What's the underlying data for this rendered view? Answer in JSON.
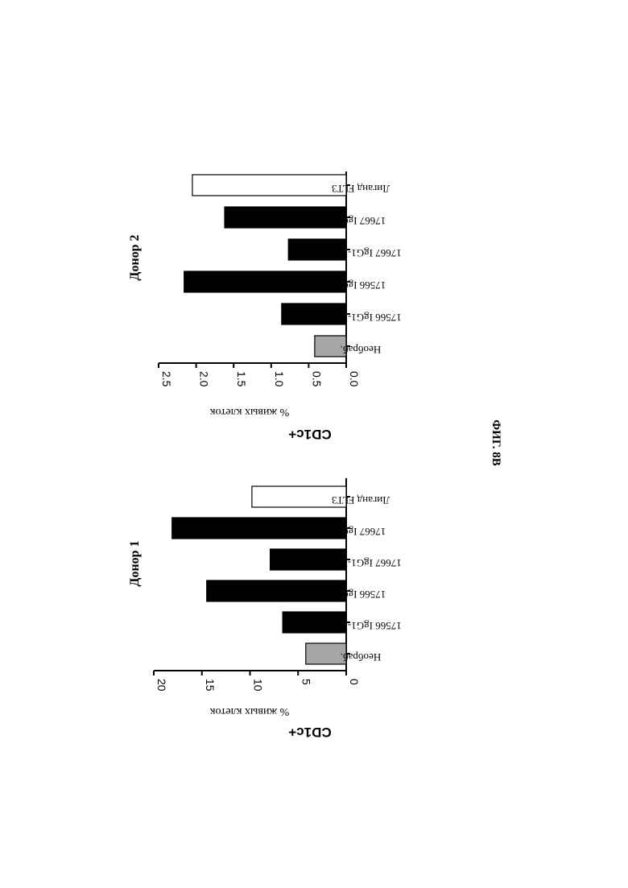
{
  "figure_label": "ФИГ. 8В",
  "chart_data": [
    {
      "type": "bar",
      "title": "Донор 1",
      "ylabel": "CD1c+",
      "ylabel_sub": "% живых клеток",
      "categories": [
        "Необраб.",
        "17566 IgG1-LALA",
        "17566 IgG2",
        "17667 IgG1-LALA",
        "17667 IgG2",
        "Лиганд FLT3"
      ],
      "values": [
        4.2,
        6.6,
        14.5,
        7.9,
        18.1,
        9.8
      ],
      "colors": [
        "#a6a6a6",
        "#000000",
        "#000000",
        "#000000",
        "#000000",
        "#ffffff"
      ],
      "ylim": [
        0,
        20
      ],
      "yticks": [
        "0",
        "5",
        "10",
        "15",
        "20"
      ],
      "grid": false
    },
    {
      "type": "bar",
      "title": "Донор 2",
      "ylabel": "CD1c+",
      "ylabel_sub": "% живых клеток",
      "categories": [
        "Необраб.",
        "17566 IgG1-LALA",
        "17566 IgG2",
        "17667 IgG1-LALA",
        "17667 IgG2",
        "Лиганд FLT3"
      ],
      "values": [
        0.42,
        0.86,
        2.16,
        0.77,
        1.62,
        2.05
      ],
      "colors": [
        "#a6a6a6",
        "#000000",
        "#000000",
        "#000000",
        "#000000",
        "#ffffff"
      ],
      "ylim": [
        0,
        2.5
      ],
      "yticks": [
        "0.0",
        "0.5",
        "1.0",
        "1.5",
        "2.0",
        "2.5"
      ],
      "grid": false
    }
  ]
}
